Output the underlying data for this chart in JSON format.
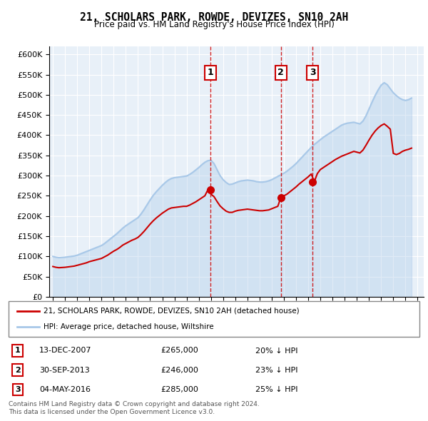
{
  "title": "21, SCHOLARS PARK, ROWDE, DEVIZES, SN10 2AH",
  "subtitle": "Price paid vs. HM Land Registry's House Price Index (HPI)",
  "hpi_color": "#a8c8e8",
  "sale_color": "#cc0000",
  "vline_color": "#cc0000",
  "plot_bg": "#e8f0f8",
  "ylim": [
    0,
    620000
  ],
  "yticks": [
    0,
    50000,
    100000,
    150000,
    200000,
    250000,
    300000,
    350000,
    400000,
    450000,
    500000,
    550000,
    600000
  ],
  "xlim_start": 1994.7,
  "xlim_end": 2025.5,
  "legend_label_sale": "21, SCHOLARS PARK, ROWDE, DEVIZES, SN10 2AH (detached house)",
  "legend_label_hpi": "HPI: Average price, detached house, Wiltshire",
  "sales": [
    {
      "date_num": 2007.95,
      "price": 265000,
      "label": "1"
    },
    {
      "date_num": 2013.75,
      "price": 246000,
      "label": "2"
    },
    {
      "date_num": 2016.35,
      "price": 285000,
      "label": "3"
    }
  ],
  "sale_info": [
    {
      "num": "1",
      "date": "13-DEC-2007",
      "price": "£265,000",
      "pct": "20% ↓ HPI"
    },
    {
      "num": "2",
      "date": "30-SEP-2013",
      "price": "£246,000",
      "pct": "23% ↓ HPI"
    },
    {
      "num": "3",
      "date": "04-MAY-2016",
      "price": "£285,000",
      "pct": "25% ↓ HPI"
    }
  ],
  "footer": "Contains HM Land Registry data © Crown copyright and database right 2024.\nThis data is licensed under the Open Government Licence v3.0.",
  "hpi_data_x": [
    1995.0,
    1995.25,
    1995.5,
    1995.75,
    1996.0,
    1996.25,
    1996.5,
    1996.75,
    1997.0,
    1997.25,
    1997.5,
    1997.75,
    1998.0,
    1998.25,
    1998.5,
    1998.75,
    1999.0,
    1999.25,
    1999.5,
    1999.75,
    2000.0,
    2000.25,
    2000.5,
    2000.75,
    2001.0,
    2001.25,
    2001.5,
    2001.75,
    2002.0,
    2002.25,
    2002.5,
    2002.75,
    2003.0,
    2003.25,
    2003.5,
    2003.75,
    2004.0,
    2004.25,
    2004.5,
    2004.75,
    2005.0,
    2005.25,
    2005.5,
    2005.75,
    2006.0,
    2006.25,
    2006.5,
    2006.75,
    2007.0,
    2007.25,
    2007.5,
    2007.75,
    2008.0,
    2008.25,
    2008.5,
    2008.75,
    2009.0,
    2009.25,
    2009.5,
    2009.75,
    2010.0,
    2010.25,
    2010.5,
    2010.75,
    2011.0,
    2011.25,
    2011.5,
    2011.75,
    2012.0,
    2012.25,
    2012.5,
    2012.75,
    2013.0,
    2013.25,
    2013.5,
    2013.75,
    2014.0,
    2014.25,
    2014.5,
    2014.75,
    2015.0,
    2015.25,
    2015.5,
    2015.75,
    2016.0,
    2016.25,
    2016.5,
    2016.75,
    2017.0,
    2017.25,
    2017.5,
    2017.75,
    2018.0,
    2018.25,
    2018.5,
    2018.75,
    2019.0,
    2019.25,
    2019.5,
    2019.75,
    2020.0,
    2020.25,
    2020.5,
    2020.75,
    2021.0,
    2021.25,
    2021.5,
    2021.75,
    2022.0,
    2022.25,
    2022.5,
    2022.75,
    2023.0,
    2023.25,
    2023.5,
    2023.75,
    2024.0,
    2024.25,
    2024.5
  ],
  "hpi_data_y": [
    100000,
    98000,
    97000,
    97500,
    98000,
    99000,
    100000,
    101000,
    103000,
    106000,
    109000,
    112000,
    115000,
    118000,
    121000,
    124000,
    127000,
    132000,
    138000,
    144000,
    150000,
    156000,
    163000,
    170000,
    176000,
    181000,
    186000,
    191000,
    196000,
    205000,
    216000,
    228000,
    240000,
    251000,
    260000,
    268000,
    276000,
    283000,
    289000,
    293000,
    295000,
    296000,
    297000,
    298000,
    299000,
    303000,
    308000,
    314000,
    320000,
    327000,
    333000,
    337000,
    338000,
    330000,
    315000,
    300000,
    290000,
    283000,
    278000,
    279000,
    282000,
    285000,
    287000,
    288000,
    289000,
    288000,
    287000,
    285000,
    284000,
    284000,
    285000,
    287000,
    290000,
    294000,
    298000,
    302000,
    306000,
    311000,
    317000,
    323000,
    330000,
    338000,
    346000,
    354000,
    362000,
    370000,
    377000,
    383000,
    389000,
    395000,
    400000,
    405000,
    410000,
    415000,
    420000,
    425000,
    428000,
    430000,
    431000,
    432000,
    430000,
    428000,
    435000,
    448000,
    465000,
    482000,
    498000,
    512000,
    524000,
    530000,
    525000,
    515000,
    505000,
    498000,
    492000,
    488000,
    486000,
    488000,
    492000
  ],
  "sale_data_x": [
    1995.0,
    1995.25,
    1995.5,
    1995.75,
    1996.0,
    1996.25,
    1996.5,
    1996.75,
    1997.0,
    1997.25,
    1997.5,
    1997.75,
    1998.0,
    1998.25,
    1998.5,
    1998.75,
    1999.0,
    1999.25,
    1999.5,
    1999.75,
    2000.0,
    2000.25,
    2000.5,
    2000.75,
    2001.0,
    2001.25,
    2001.5,
    2001.75,
    2002.0,
    2002.25,
    2002.5,
    2002.75,
    2003.0,
    2003.25,
    2003.5,
    2003.75,
    2004.0,
    2004.25,
    2004.5,
    2004.75,
    2005.0,
    2005.25,
    2005.5,
    2005.75,
    2006.0,
    2006.25,
    2006.5,
    2006.75,
    2007.0,
    2007.25,
    2007.5,
    2007.75,
    2008.0,
    2008.25,
    2008.5,
    2008.75,
    2009.0,
    2009.25,
    2009.5,
    2009.75,
    2010.0,
    2010.25,
    2010.5,
    2010.75,
    2011.0,
    2011.25,
    2011.5,
    2011.75,
    2012.0,
    2012.25,
    2012.5,
    2012.75,
    2013.0,
    2013.25,
    2013.5,
    2013.75,
    2014.0,
    2014.25,
    2014.5,
    2014.75,
    2015.0,
    2015.25,
    2015.5,
    2015.75,
    2016.0,
    2016.25,
    2016.5,
    2016.75,
    2017.0,
    2017.25,
    2017.5,
    2017.75,
    2018.0,
    2018.25,
    2018.5,
    2018.75,
    2019.0,
    2019.25,
    2019.5,
    2019.75,
    2020.0,
    2020.25,
    2020.5,
    2020.75,
    2021.0,
    2021.25,
    2021.5,
    2021.75,
    2022.0,
    2022.25,
    2022.5,
    2022.75,
    2023.0,
    2023.25,
    2023.5,
    2023.75,
    2024.0,
    2024.25,
    2024.5
  ],
  "sale_data_y": [
    75000,
    73000,
    72000,
    72500,
    73000,
    74000,
    75000,
    76000,
    78000,
    80000,
    82000,
    84000,
    87000,
    89000,
    91000,
    93000,
    95000,
    99000,
    103000,
    108000,
    113000,
    117000,
    122000,
    128000,
    132000,
    136000,
    140000,
    143000,
    147000,
    154000,
    162000,
    171000,
    180000,
    188000,
    195000,
    201000,
    207000,
    212000,
    217000,
    220000,
    221000,
    222000,
    223000,
    224000,
    224000,
    227000,
    231000,
    235000,
    240000,
    245000,
    250000,
    265000,
    254000,
    248000,
    236000,
    225000,
    218000,
    212000,
    209000,
    209000,
    212000,
    214000,
    215000,
    216000,
    217000,
    216000,
    215000,
    214000,
    213000,
    213000,
    214000,
    215000,
    218000,
    221000,
    224000,
    246000,
    250000,
    254000,
    260000,
    266000,
    272000,
    279000,
    285000,
    291000,
    297000,
    304000,
    285000,
    305000,
    315000,
    320000,
    325000,
    330000,
    335000,
    340000,
    344000,
    348000,
    351000,
    354000,
    357000,
    360000,
    358000,
    356000,
    363000,
    375000,
    388000,
    400000,
    410000,
    418000,
    424000,
    428000,
    422000,
    415000,
    355000,
    352000,
    355000,
    360000,
    363000,
    365000,
    368000
  ]
}
